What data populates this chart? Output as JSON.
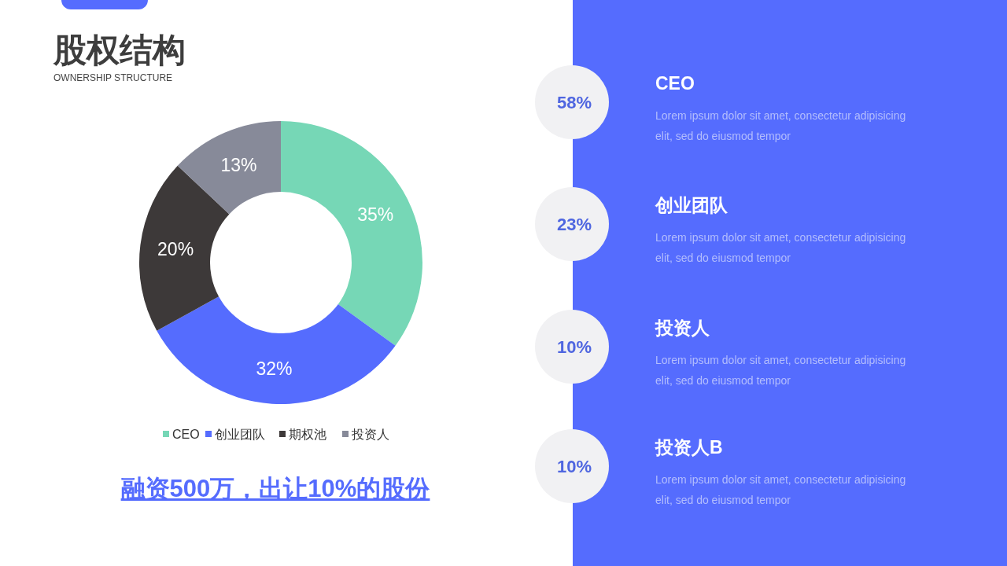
{
  "chart_data": [
    {
      "type": "donut",
      "title": "股权结构",
      "subtitle": "OWNERSHIP STRUCTURE",
      "categories": [
        "CEO",
        "创业团队",
        "期权池",
        "投资人"
      ],
      "values": [
        35,
        32,
        20,
        13
      ],
      "colors": [
        "#76d7b6",
        "#556cfe",
        "#3d3939",
        "#878a99"
      ],
      "value_labels": [
        "35%",
        "32%",
        "20%",
        "13%"
      ],
      "legend": "bottom",
      "annotations": [
        "融资500万，出让10%的股份"
      ]
    },
    {
      "type": "other",
      "categories": [
        "CEO",
        "创业团队",
        "投资人",
        "投资人B"
      ],
      "value_labels": [
        "58%",
        "23%",
        "10%",
        "10%"
      ],
      "annotations": [
        "Lorem ipsum dolor sit amet, consectetur adipisicing elit, sed do eiusmod tempor",
        "Lorem ipsum dolor sit amet, consectetur adipisicing elit, sed do eiusmod tempor",
        "Lorem ipsum dolor sit amet, consectetur adipisicing elit, sed do eiusmod tempor",
        "Lorem ipsum dolor sit amet, consectetur adipisicing elit, sed do eiusmod tempor"
      ]
    }
  ]
}
